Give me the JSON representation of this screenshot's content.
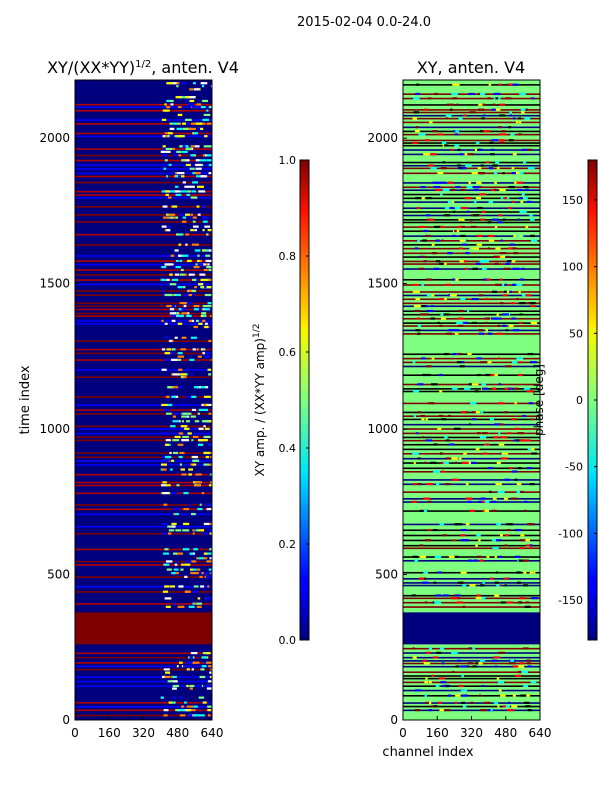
{
  "figure": {
    "suptitle": "2015-02-04 0.0-24.0"
  },
  "chart_data": [
    {
      "type": "heatmap",
      "title_main": "XY/(XX*YY)",
      "title_sup": "1/2",
      "title_rest": ", anten. V4",
      "xlabel": "",
      "ylabel": "time index",
      "xlim": [
        0,
        640
      ],
      "ylim": [
        0,
        2200
      ],
      "xticks": [
        "0",
        "160",
        "320",
        "480",
        "640"
      ],
      "yticks": [
        "0",
        "500",
        "1000",
        "1500",
        "2000"
      ],
      "background_color": "#00007f",
      "flagged_time_range": [
        260,
        370
      ],
      "flagged_color": "#7f0000",
      "colorbar": {
        "label_main": "XY amp. / (XX*YY amp)",
        "label_sup": "1/2",
        "range": [
          0.0,
          1.0
        ],
        "ticks": [
          "0.0",
          "0.2",
          "0.4",
          "0.6",
          "0.8",
          "1.0"
        ]
      }
    },
    {
      "type": "heatmap",
      "title": "XY, anten. V4",
      "xlabel": "channel index",
      "ylabel": "",
      "xlim": [
        0,
        640
      ],
      "ylim": [
        0,
        2200
      ],
      "xticks": [
        "0",
        "160",
        "320",
        "480",
        "640"
      ],
      "yticks": [
        "0",
        "500",
        "1000",
        "1500",
        "2000"
      ],
      "background_color": "#7fff7f",
      "flagged_time_range": [
        260,
        370
      ],
      "flagged_color": "#00007f",
      "colorbar": {
        "label": "phase [deg]",
        "range": [
          -180,
          180
        ],
        "ticks": [
          "-150",
          "-100",
          "-50",
          "0",
          "50",
          "100",
          "150"
        ]
      }
    }
  ]
}
